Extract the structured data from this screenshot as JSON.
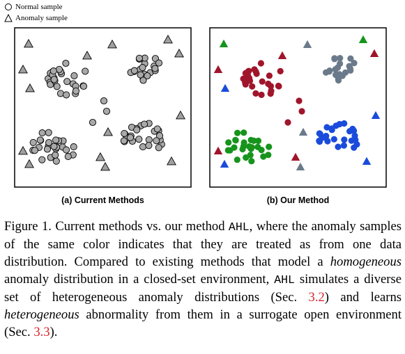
{
  "legend": {
    "normal": "Normal sample",
    "anomaly": "Anomaly sample"
  },
  "panels": {
    "left_label": "(a) Current Methods",
    "right_label": "(b) Our Method"
  },
  "colors": {
    "gray_fill": "#a9a9a9",
    "dark_red": "#a0152b",
    "slate": "#6b7a8a",
    "green": "#16941c",
    "blue": "#1a4bdb",
    "tri_gray": "#a0a0a0",
    "ref_red": "#d8232a"
  },
  "caption": {
    "fig_label": "Figure 1.",
    "p1": " Current methods vs. our method ",
    "ahl1": "AHL",
    "p2": ", where the anomaly samples of the same color indicates that they are treated as from one data distribution. Compared to existing methods that model a ",
    "em1": "homogeneous",
    "p3": " anomaly distribution in a closed-set environment, ",
    "ahl2": "AHL",
    "p4": " simulates a diverse set of heterogeneous anomaly distributions (Sec. ",
    "ref1": "3.2",
    "p5": ") and learns ",
    "em2": "heterogeneous",
    "p6": " abnormality from them in a surrogate open environment (Sec. ",
    "ref2": "3.3",
    "p7": ")."
  }
}
